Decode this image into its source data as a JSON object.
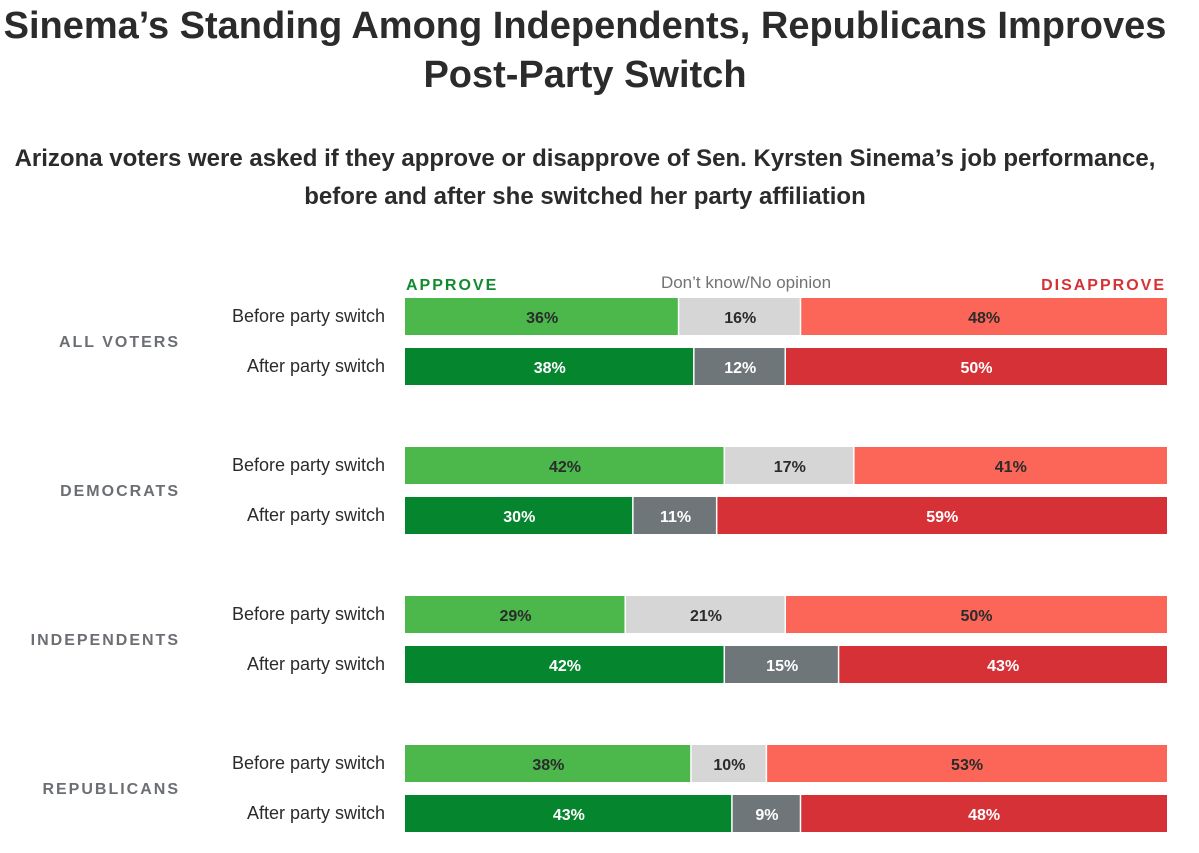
{
  "title": "Sinema’s Standing Among Independents, Republicans Improves Post-Party Switch",
  "subtitle": "Arizona voters were asked if they approve or disapprove of Sen. Kyrsten Sinema’s job performance, before and after she switched her party affiliation",
  "colors": {
    "approve_before": "#4cb84c",
    "approve_after": "#05852e",
    "dk_before": "#d6d6d6",
    "dk_after": "#6f7679",
    "disapprove_before": "#fb6658",
    "disapprove_after": "#d63136",
    "approve_label": "#138a2f",
    "disapprove_label": "#d63136",
    "dk_label": "#727272",
    "group_label": "#6b6e72"
  },
  "chart_data": {
    "type": "bar",
    "orientation": "horizontal",
    "stacked": true,
    "normalized_to": 100,
    "legend": {
      "approve": "APPROVE",
      "dont_know": "Don’t know/No opinion",
      "disapprove": "DISAPPROVE"
    },
    "series_names": [
      "Approve",
      "Don’t know/No opinion",
      "Disapprove"
    ],
    "groups": [
      {
        "label": "ALL VOTERS",
        "rows": [
          {
            "label": "Before party switch",
            "period": "before",
            "values": [
              36,
              16,
              48
            ],
            "text": [
              "36%",
              "16%",
              "48%"
            ]
          },
          {
            "label": "After party switch",
            "period": "after",
            "values": [
              38,
              12,
              50
            ],
            "text": [
              "38%",
              "12%",
              "50%"
            ]
          }
        ]
      },
      {
        "label": "DEMOCRATS",
        "rows": [
          {
            "label": "Before party switch",
            "period": "before",
            "values": [
              42,
              17,
              41
            ],
            "text": [
              "42%",
              "17%",
              "41%"
            ]
          },
          {
            "label": "After party switch",
            "period": "after",
            "values": [
              30,
              11,
              59
            ],
            "text": [
              "30%",
              "11%",
              "59%"
            ]
          }
        ]
      },
      {
        "label": "INDEPENDENTS",
        "rows": [
          {
            "label": "Before party switch",
            "period": "before",
            "values": [
              29,
              21,
              50
            ],
            "text": [
              "29%",
              "21%",
              "50%"
            ]
          },
          {
            "label": "After party switch",
            "period": "after",
            "values": [
              42,
              15,
              43
            ],
            "text": [
              "42%",
              "15%",
              "43%"
            ]
          }
        ]
      },
      {
        "label": "REPUBLICANS",
        "rows": [
          {
            "label": "Before party switch",
            "period": "before",
            "values": [
              38,
              10,
              53
            ],
            "text": [
              "38%",
              "10%",
              "53%"
            ]
          },
          {
            "label": "After party switch",
            "period": "after",
            "values": [
              43,
              9,
              48
            ],
            "text": [
              "43%",
              "9%",
              "48%"
            ]
          }
        ]
      }
    ]
  }
}
